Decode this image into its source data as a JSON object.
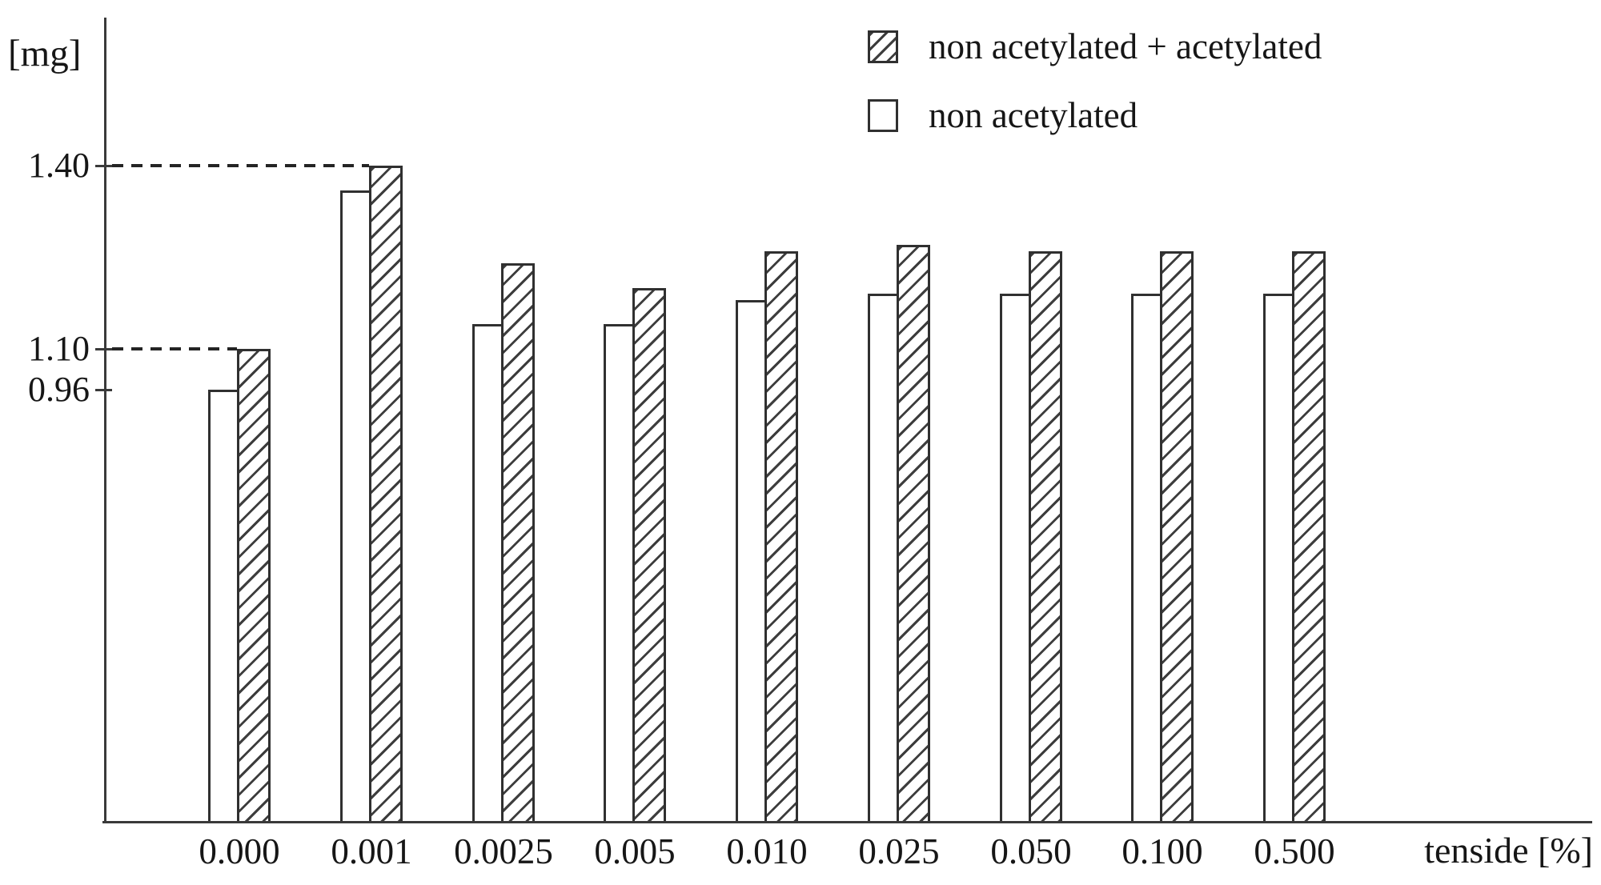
{
  "y_axis": {
    "unit_label": "[mg]",
    "ticks": [
      "1.40",
      "1.10",
      "0.96"
    ]
  },
  "x_axis": {
    "label": "tenside [%]",
    "categories": [
      "0.000",
      "0.001",
      "0.0025",
      "0.005",
      "0.010",
      "0.025",
      "0.050",
      "0.100",
      "0.500"
    ]
  },
  "legend": [
    {
      "label": "non acetylated + acetylated",
      "style": "hatched"
    },
    {
      "label": "non acetylated",
      "style": "plain"
    }
  ],
  "colors": {
    "ink": "#303030",
    "background": "#ffffff"
  },
  "chart_data": {
    "type": "bar",
    "title": "",
    "xlabel": "tenside [%]",
    "ylabel": "[mg]",
    "categories": [
      "0.000",
      "0.001",
      "0.0025",
      "0.005",
      "0.010",
      "0.025",
      "0.050",
      "0.100",
      "0.500"
    ],
    "series": [
      {
        "name": "non acetylated",
        "style": "plain",
        "values": [
          0.96,
          1.36,
          1.14,
          1.14,
          1.18,
          1.19,
          1.19,
          1.19,
          1.19
        ]
      },
      {
        "name": "non acetylated + acetylated",
        "style": "hatched",
        "values": [
          1.1,
          1.4,
          1.24,
          1.2,
          1.26,
          1.27,
          1.26,
          1.26,
          1.26
        ]
      }
    ],
    "y_tick_values": [
      1.4,
      1.1,
      0.96
    ],
    "guides": [
      {
        "value": 1.4,
        "to_category": "0.001"
      },
      {
        "value": 1.1,
        "to_category": "0.000"
      }
    ],
    "legend_position": "top-right",
    "grid": false,
    "note": "monochrome bar chart; hatched bars = non acetylated + acetylated, open bars = non acetylated; dashed guide lines mark 1.40 and 1.10 levels"
  }
}
